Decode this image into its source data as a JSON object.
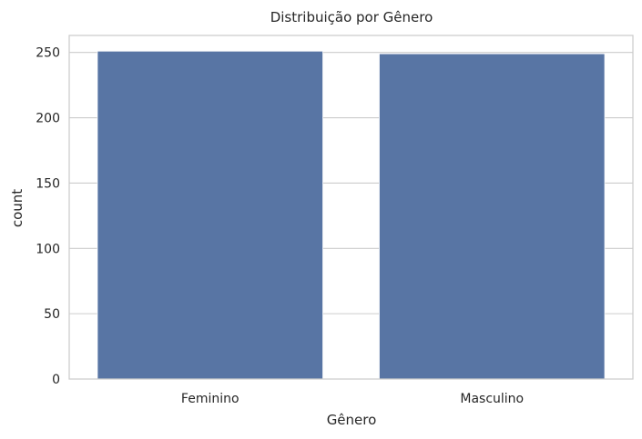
{
  "chart_data": {
    "type": "bar",
    "title": "Distribuição por Gênero",
    "xlabel": "Gênero",
    "ylabel": "count",
    "categories": [
      "Feminino",
      "Masculino"
    ],
    "values": [
      251,
      249
    ],
    "ylim": [
      0,
      263
    ],
    "yticks": [
      0,
      50,
      100,
      150,
      200,
      250
    ],
    "grid": "horizontal",
    "legend": "none",
    "colors": {
      "bar": "#5875a4",
      "grid": "#cccccc",
      "axes_edge": "#cccccc",
      "text": "#262626",
      "background": "#ffffff"
    }
  }
}
